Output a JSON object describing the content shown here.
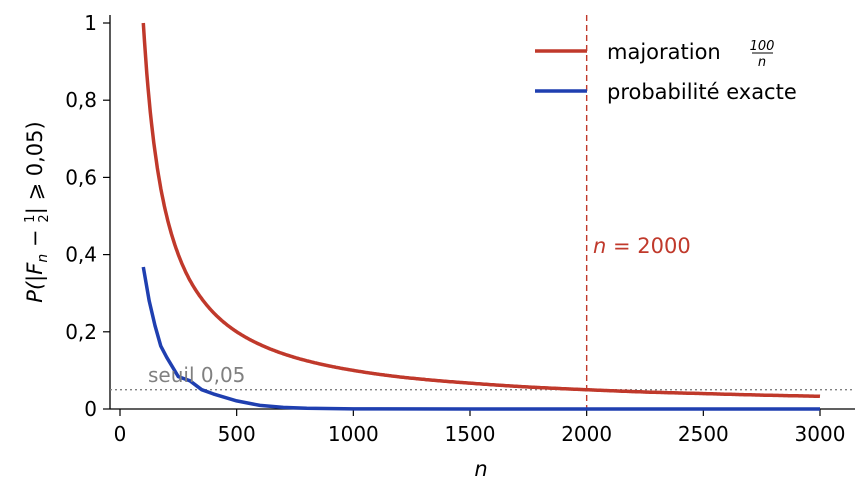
{
  "chart_data": {
    "type": "line",
    "title": "",
    "xlabel": "n",
    "ylabel": "P(|Fn − 1/2| ⩾ 0,05)",
    "ylabel_parts": {
      "pre": "P(|F",
      "sub": "n",
      "mid": " − ",
      "num": "1",
      "den": "2",
      "post": "| ⩾ 0,05)"
    },
    "xlim": [
      -50,
      3150
    ],
    "ylim": [
      0,
      1.0
    ],
    "x_ticks": [
      0,
      500,
      1000,
      1500,
      2000,
      2500,
      3000
    ],
    "x_tick_labels": [
      "0",
      "500",
      "1000",
      "1500",
      "2000",
      "2500",
      "3000"
    ],
    "y_ticks": [
      0,
      0.2,
      0.4,
      0.6,
      0.8,
      1.0
    ],
    "y_tick_labels": [
      "0",
      "0,2",
      "0,4",
      "0,6",
      "0,8",
      "1"
    ],
    "grid": false,
    "legend_position": "top-right",
    "series": [
      {
        "name": "majoration 100/n",
        "label_text": "majoration",
        "label_frac": {
          "num": "100",
          "den": "n"
        },
        "color": "#c0392b",
        "x": [
          100,
          110,
          120,
          130,
          140,
          150,
          175,
          200,
          250,
          300,
          350,
          400,
          500,
          600,
          700,
          800,
          1000,
          1200,
          1500,
          1750,
          2000,
          2250,
          2500,
          2750,
          3000
        ],
        "y": [
          1.0,
          0.909,
          0.833,
          0.769,
          0.714,
          0.667,
          0.571,
          0.5,
          0.4,
          0.333,
          0.286,
          0.25,
          0.2,
          0.167,
          0.143,
          0.125,
          0.1,
          0.083,
          0.067,
          0.057,
          0.05,
          0.044,
          0.04,
          0.036,
          0.033
        ]
      },
      {
        "name": "probabilité exacte",
        "label_text": "probabilité exacte",
        "color": "#1f3fb0",
        "x": [
          100,
          125,
          150,
          175,
          200,
          250,
          300,
          350,
          400,
          450,
          500,
          600,
          700,
          800,
          1000,
          1500,
          2000,
          3000
        ],
        "y": [
          0.368,
          0.28,
          0.216,
          0.163,
          0.134,
          0.084,
          0.073,
          0.05,
          0.039,
          0.03,
          0.021,
          0.0093,
          0.0041,
          0.0017,
          0.0002,
          0.0,
          0.0,
          0.0
        ]
      }
    ],
    "annotations": [
      {
        "kind": "vline",
        "x": 2000,
        "color": "#c0392b",
        "style": "dashed",
        "label_lhs": "n",
        "label_rhs": " = 2000"
      },
      {
        "kind": "hline",
        "y": 0.05,
        "color": "#808080",
        "style": "dotted",
        "label": "seuil 0,05"
      }
    ]
  }
}
